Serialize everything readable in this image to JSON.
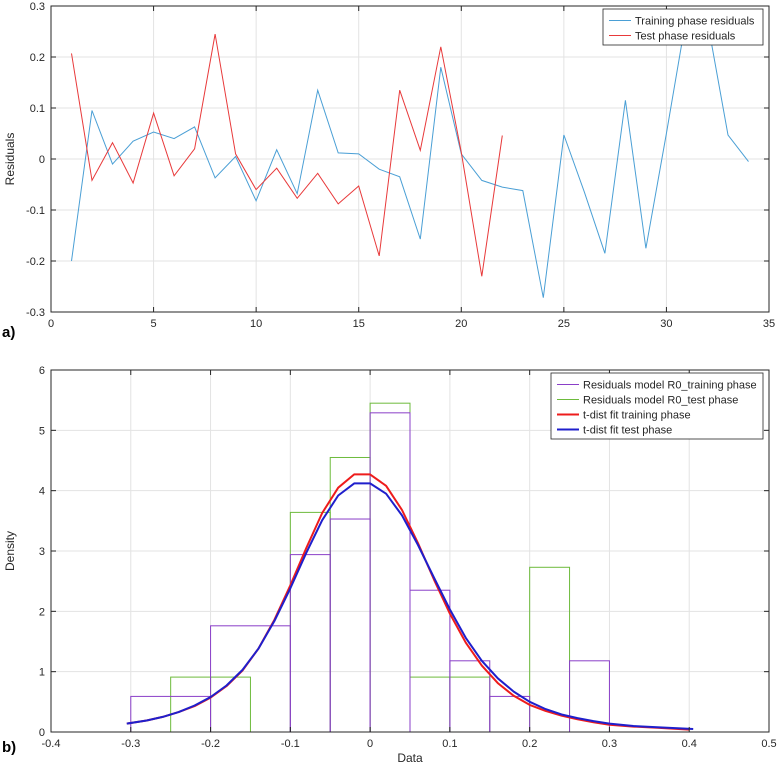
{
  "chart_data": [
    {
      "panel_label": "a)",
      "type": "line",
      "title": "",
      "xlabel": "",
      "ylabel": "Residuals",
      "xlim": [
        0,
        35
      ],
      "ylim": [
        -0.3,
        0.3
      ],
      "xticks": [
        0,
        5,
        10,
        15,
        20,
        25,
        30,
        35
      ],
      "yticks": [
        -0.3,
        -0.2,
        -0.1,
        0,
        0.1,
        0.2,
        0.3
      ],
      "xtick_labels": [
        "0",
        "5",
        "10",
        "15",
        "20",
        "25",
        "30",
        "35"
      ],
      "ytick_labels": [
        "-0.3",
        "-0.2",
        "-0.1",
        "0",
        "0.1",
        "0.2",
        "0.3"
      ],
      "grid": true,
      "legend_position": "top-right",
      "series": [
        {
          "name": "Training phase residuals",
          "color": "#4a9fd5",
          "x": [
            1,
            2,
            3,
            4,
            5,
            6,
            7,
            8,
            9,
            10,
            11,
            12,
            13,
            14,
            15,
            16,
            17,
            18,
            19,
            20,
            21,
            22,
            23,
            24,
            25,
            26,
            27,
            28,
            29,
            30,
            31,
            32,
            33,
            34
          ],
          "y": [
            -0.2,
            0.095,
            -0.01,
            0.035,
            0.053,
            0.04,
            0.063,
            -0.037,
            0.005,
            -0.082,
            0.018,
            -0.068,
            0.135,
            0.012,
            0.01,
            -0.02,
            -0.035,
            -0.157,
            0.18,
            0.01,
            -0.042,
            -0.055,
            -0.062,
            -0.272,
            0.047,
            -0.065,
            -0.185,
            0.115,
            -0.175,
            0.05,
            0.285,
            0.27,
            0.047,
            -0.005
          ]
        },
        {
          "name": "Test phase residuals",
          "color": "#e8393a",
          "x": [
            1,
            2,
            3,
            4,
            5,
            6,
            7,
            8,
            9,
            10,
            11,
            12,
            13,
            14,
            15,
            16,
            17,
            18,
            19,
            20,
            21,
            22
          ],
          "y": [
            0.207,
            -0.042,
            0.032,
            -0.047,
            0.09,
            -0.033,
            0.02,
            0.245,
            0.01,
            -0.06,
            -0.018,
            -0.077,
            -0.028,
            -0.088,
            -0.053,
            -0.19,
            0.135,
            0.017,
            0.22,
            0.013,
            -0.23,
            0.046
          ]
        }
      ]
    },
    {
      "panel_label": "b)",
      "type": "histogram",
      "title": "",
      "xlabel": "Data",
      "ylabel": "Density",
      "xlim": [
        -0.4,
        0.5
      ],
      "ylim": [
        0,
        6
      ],
      "xticks": [
        -0.4,
        -0.3,
        -0.2,
        -0.1,
        0,
        0.1,
        0.2,
        0.3,
        0.4,
        0.5
      ],
      "yticks": [
        0,
        1,
        2,
        3,
        4,
        5,
        6
      ],
      "xtick_labels": [
        "-0.4",
        "-0.3",
        "-0.2",
        "-0.1",
        "0",
        "0.1",
        "0.2",
        "0.3",
        "0.4",
        "0.5"
      ],
      "ytick_labels": [
        "0",
        "1",
        "2",
        "3",
        "4",
        "5",
        "6"
      ],
      "grid": true,
      "legend_position": "top-right",
      "histograms": [
        {
          "name": "Residuals model R0_training phase",
          "color": "#8a3fc8",
          "bin_edges": [
            -0.3,
            -0.2,
            -0.1,
            -0.05,
            0,
            0.05,
            0.1,
            0.15,
            0.2,
            0.25,
            0.3
          ],
          "densities": [
            0.59,
            1.76,
            2.94,
            3.53,
            5.29,
            2.35,
            1.18,
            0.59,
            0,
            1.18
          ]
        },
        {
          "name": "Residuals model R0_test phase",
          "color": "#6dbb3c",
          "bin_edges": [
            -0.25,
            -0.2,
            -0.15,
            -0.1,
            -0.05,
            0,
            0.05,
            0.1,
            0.15,
            0.2,
            0.25
          ],
          "densities": [
            0.91,
            0.91,
            0,
            3.64,
            4.55,
            5.45,
            0.91,
            0.91,
            0,
            2.73
          ]
        }
      ],
      "curves": [
        {
          "name": "t-dist fit training phase",
          "color": "#ee1c1c",
          "x": [
            -0.305,
            -0.28,
            -0.26,
            -0.24,
            -0.22,
            -0.2,
            -0.18,
            -0.16,
            -0.14,
            -0.12,
            -0.1,
            -0.08,
            -0.06,
            -0.04,
            -0.02,
            0,
            0.02,
            0.04,
            0.06,
            0.08,
            0.1,
            0.12,
            0.14,
            0.16,
            0.18,
            0.2,
            0.22,
            0.24,
            0.26,
            0.28,
            0.3,
            0.33,
            0.36,
            0.4
          ],
          "y": [
            0.14,
            0.19,
            0.25,
            0.33,
            0.43,
            0.57,
            0.76,
            1.02,
            1.38,
            1.86,
            2.43,
            3.05,
            3.63,
            4.05,
            4.27,
            4.27,
            4.08,
            3.68,
            3.13,
            2.53,
            1.96,
            1.48,
            1.1,
            0.81,
            0.6,
            0.45,
            0.35,
            0.27,
            0.21,
            0.16,
            0.12,
            0.09,
            0.07,
            0.04
          ]
        },
        {
          "name": "t-dist fit test phase",
          "color": "#1f1fcc",
          "x": [
            -0.305,
            -0.28,
            -0.26,
            -0.24,
            -0.22,
            -0.2,
            -0.18,
            -0.16,
            -0.14,
            -0.12,
            -0.1,
            -0.08,
            -0.06,
            -0.04,
            -0.02,
            0,
            0.02,
            0.04,
            0.06,
            0.08,
            0.1,
            0.12,
            0.14,
            0.16,
            0.18,
            0.2,
            0.22,
            0.24,
            0.26,
            0.28,
            0.3,
            0.33,
            0.36,
            0.405
          ],
          "y": [
            0.14,
            0.19,
            0.25,
            0.33,
            0.44,
            0.58,
            0.77,
            1.03,
            1.38,
            1.84,
            2.38,
            2.97,
            3.51,
            3.92,
            4.12,
            4.12,
            3.95,
            3.59,
            3.1,
            2.56,
            2.03,
            1.56,
            1.18,
            0.89,
            0.67,
            0.5,
            0.38,
            0.29,
            0.23,
            0.18,
            0.14,
            0.1,
            0.08,
            0.05
          ]
        }
      ]
    }
  ]
}
